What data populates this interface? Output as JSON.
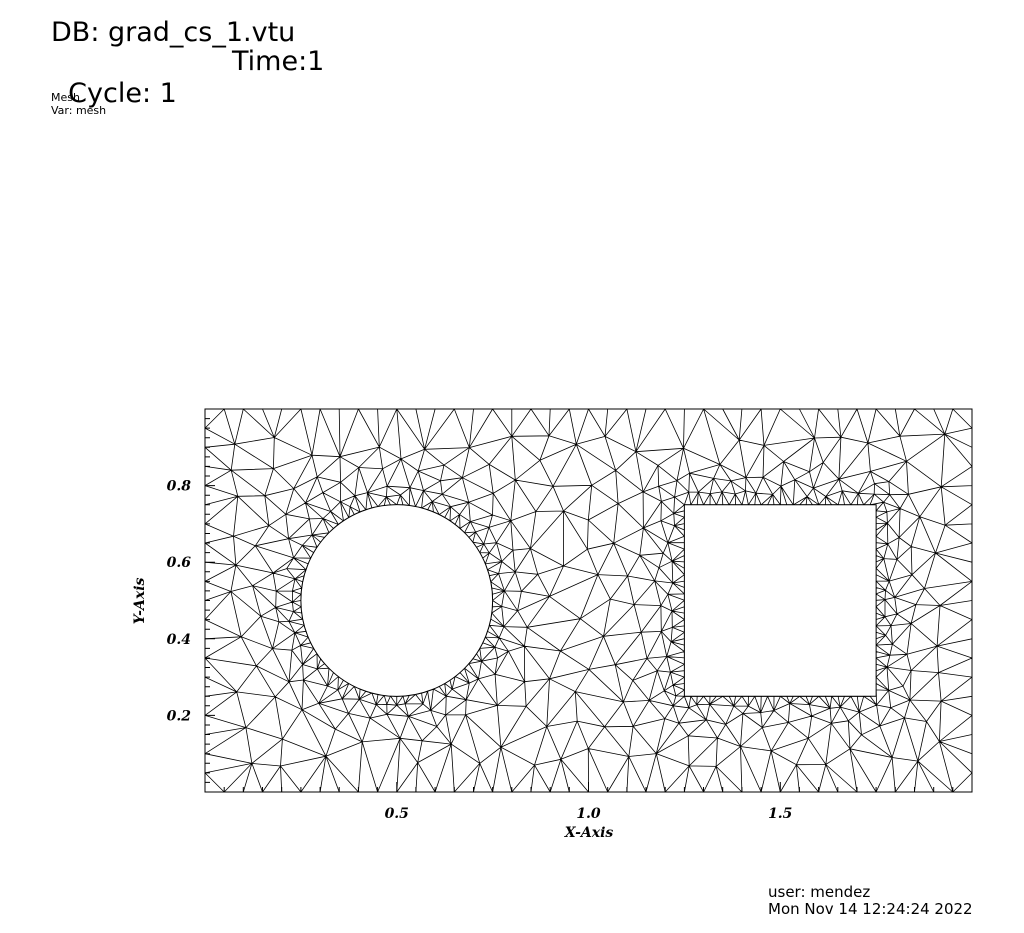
{
  "header": {
    "db_label": "DB: grad_cs_1.vtu",
    "cycle_label": "Cycle: 1",
    "time_label": "Time:1",
    "plot_name": "Mesh",
    "var_label": "Var: mesh"
  },
  "footer": {
    "user_label": "user: mendez",
    "date_label": "Mon Nov 14 12:24:24 2022"
  },
  "chart_data": {
    "type": "mesh",
    "xlabel": "X-Axis",
    "ylabel": "Y-Axis",
    "xlim": [
      0,
      2
    ],
    "ylim": [
      0,
      1
    ],
    "x_ticks": [
      "0.5",
      "1.0",
      "1.5"
    ],
    "y_ticks": [
      "0.2",
      "0.4",
      "0.6",
      "0.8"
    ],
    "holes": [
      {
        "shape": "circle",
        "center": [
          0.5,
          0.5
        ],
        "radius": 0.25
      },
      {
        "shape": "square",
        "xmin": 1.25,
        "xmax": 1.75,
        "ymin": 0.25,
        "ymax": 0.75
      }
    ]
  }
}
